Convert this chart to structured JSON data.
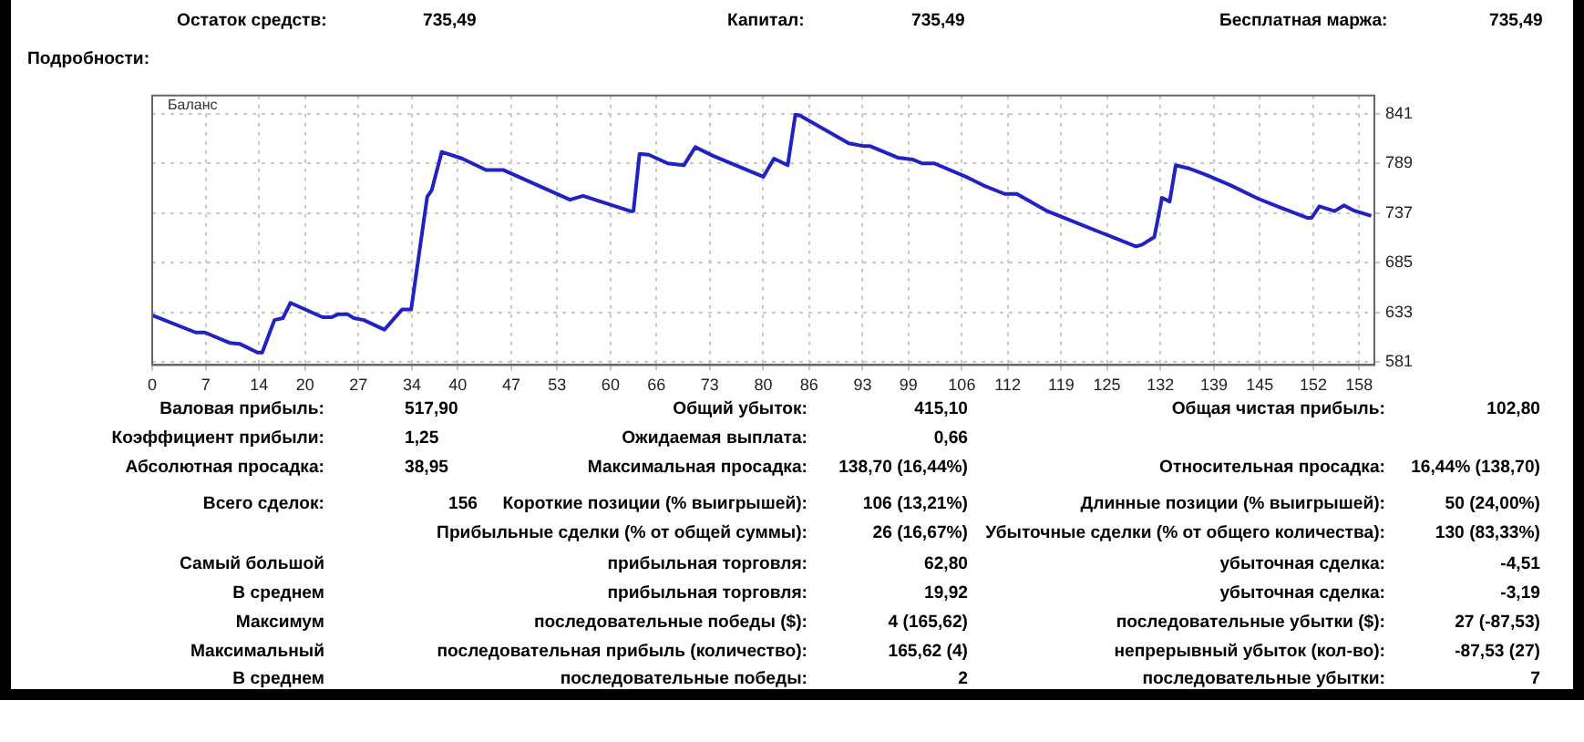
{
  "chart_data": {
    "type": "line",
    "grid": true,
    "xlim": [
      0,
      160
    ],
    "xticks": [
      0,
      7,
      14,
      20,
      27,
      34,
      40,
      47,
      53,
      60,
      66,
      73,
      80,
      86,
      93,
      99,
      106,
      112,
      119,
      125,
      132,
      139,
      145,
      152,
      158
    ],
    "ylim": [
      578,
      860
    ],
    "yticks": [
      581,
      633,
      685,
      737,
      789,
      841
    ],
    "series": [
      {
        "color": "#2222c4",
        "x": [
          0,
          5.7,
          6.9,
          10.2,
          11.5,
          13.8,
          14.4,
          16,
          17.1,
          18.1,
          22.3,
          23.5,
          24.3,
          25.6,
          26.4,
          27.7,
          30.4,
          32.7,
          33.9,
          36,
          36.6,
          37.9,
          40.6,
          43.7,
          46,
          54.7,
          56.4,
          62.6,
          63,
          63.8,
          65,
          67.5,
          69.6,
          71.1,
          73.4,
          80,
          81.4,
          83.2,
          84.2,
          84.8,
          91.2,
          93.2,
          94,
          97.6,
          99.6,
          100.8,
          102.4,
          106.8,
          108.8,
          111.6,
          113.2,
          117.2,
          124.4,
          128.8,
          129.6,
          131.2,
          132.2,
          133.2,
          134,
          135.6,
          138,
          141.2,
          144.8,
          147.6,
          151.2,
          151.8,
          152.8,
          154.8,
          156,
          157.2,
          159.6
        ],
        "values": [
          630,
          612,
          612,
          601,
          600,
          591,
          591,
          625,
          627,
          643,
          628,
          628,
          631,
          631,
          627,
          625,
          615,
          636,
          636,
          754,
          761,
          801,
          794,
          782,
          782,
          751,
          755,
          739,
          739,
          799,
          798,
          789,
          787,
          806,
          797,
          775,
          794,
          787,
          840,
          839,
          810,
          807,
          807,
          795,
          793,
          789,
          789,
          774,
          766,
          757,
          757,
          739,
          716,
          702,
          704,
          712,
          753,
          749,
          787,
          784,
          777,
          766,
          752,
          743,
          732,
          732,
          744,
          739,
          745,
          740,
          734
        ]
      }
    ],
    "annotations": [
      "Остаток средств:",
      "735,49",
      "Капитал:",
      "735,49",
      "Бесплатная маржа:",
      "735,49",
      "Подробности:",
      "Баланс",
      "Валовая прибыль:",
      "517,90",
      "Общий убыток:",
      "415,10",
      "Общая чистая прибыль:",
      "102,80",
      "Коэффициент прибыли:",
      "1,25",
      "Ожидаемая выплата:",
      "0,66",
      "Абсолютная просадка:",
      "38,95",
      "Максимальная просадка:",
      "138,70 (16,44%)",
      "Относительная просадка:",
      "16,44% (138,70)",
      "Всего сделок:",
      "156",
      "Короткие позиции (% выигрышей):",
      "106 (13,21%)",
      "Длинные позиции (% выигрышей):",
      "50 (24,00%)",
      "Прибыльные сделки (% от общей суммы):",
      "26 (16,67%)",
      "Убыточные сделки (% от общего количества):",
      "130 (83,33%)",
      "Самый большой",
      "прибыльная торговля:",
      "62,80",
      "убыточная сделка:",
      "-4,51",
      "В среднем",
      "прибыльная торговля:",
      "19,92",
      "убыточная сделка:",
      "-3,19",
      "Максимум",
      "последовательные победы ($):",
      "4 (165,62)",
      "последовательные убытки ($):",
      "27 (-87,53)",
      "Максимальный",
      "последовательная прибыль (количество):",
      "165,62 (4)",
      "непрерывный убыток (кол-во):",
      "-87,53 (27)",
      "В среднем",
      "последовательные победы:",
      "2",
      "последовательные убытки:",
      "7"
    ]
  }
}
